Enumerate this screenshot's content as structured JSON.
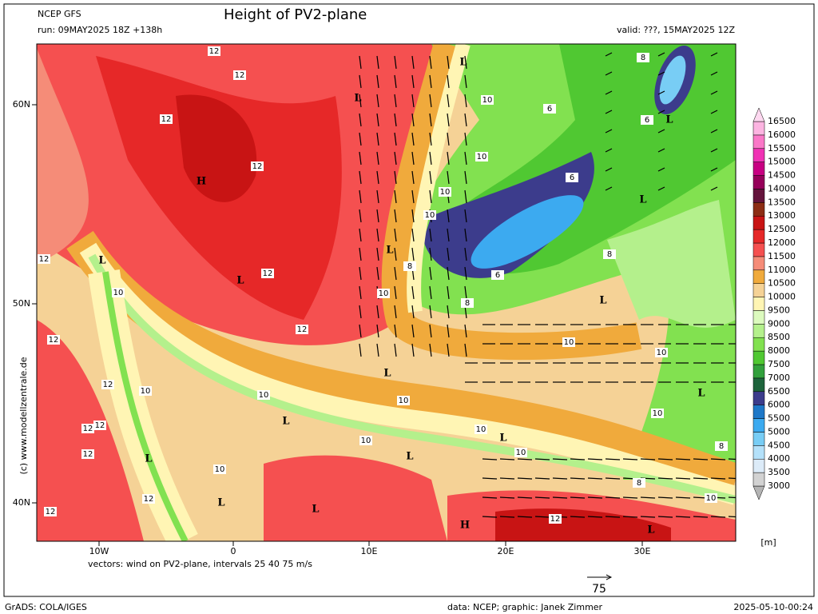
{
  "header": {
    "model": "NCEP GFS",
    "run": "run: 09MAY2025 18Z +138h",
    "title": "Height of PV2-plane",
    "valid": "valid: ???, 15MAY2025 12Z"
  },
  "axes": {
    "lat_labels": [
      "60N",
      "50N",
      "40N"
    ],
    "lon_labels": [
      "10W",
      "0",
      "10E",
      "20E",
      "30E"
    ]
  },
  "colorbar": {
    "levels": [
      3000,
      3500,
      4000,
      4500,
      5000,
      5500,
      6000,
      6500,
      7000,
      7500,
      8000,
      8500,
      9000,
      9500,
      10000,
      10500,
      11000,
      11500,
      12000,
      12500,
      13000,
      13500,
      14000,
      14500,
      15000,
      15500,
      16000,
      16500
    ],
    "colors": [
      "#b4b4b4",
      "#d2d2d2",
      "#dcebf8",
      "#b4e1fa",
      "#78cdf5",
      "#3caaf0",
      "#1e78c8",
      "#3c3c8c",
      "#1e643c",
      "#32a03c",
      "#50c832",
      "#82e150",
      "#b4f08c",
      "#dcfabe",
      "#fff5b4",
      "#f5d296",
      "#f0aa3c",
      "#f58c78",
      "#f55050",
      "#e62828",
      "#c81414",
      "#8c2d14",
      "#64143c",
      "#96005a",
      "#c80082",
      "#f032b4",
      "#fa78c8",
      "#fcb4e1",
      "#fed8f0"
    ],
    "unit": "[m]"
  },
  "map_labels": [
    "12",
    "12",
    "L",
    "12",
    "H",
    "12",
    "12",
    "L",
    "L",
    "12",
    "12",
    "10",
    "12",
    "12",
    "10",
    "10",
    "L",
    "L",
    "10",
    "12",
    "12",
    "12",
    "L",
    "10",
    "12",
    "L",
    "12",
    "L",
    "10",
    "L",
    "H",
    "12",
    "L",
    "10",
    "8",
    "10",
    "L",
    "10",
    "10",
    "L",
    "8",
    "10",
    "10",
    "L",
    "8",
    "L",
    "6",
    "8",
    "8",
    "10",
    "10",
    "10",
    "10",
    "10",
    "L",
    "8",
    "6",
    "L",
    "6",
    "6",
    "L"
  ],
  "footer": {
    "vectors": "vectors: wind on PV2-plane, intervals 25 40 75 m/s",
    "ref_vector": "75",
    "copyright": "(c) www.modellzentrale.de",
    "grads": "GrADS: COLA/IGES",
    "credits": "data: NCEP; graphic: Janek Zimmer",
    "timestamp": "2025-05-10-00:24"
  }
}
